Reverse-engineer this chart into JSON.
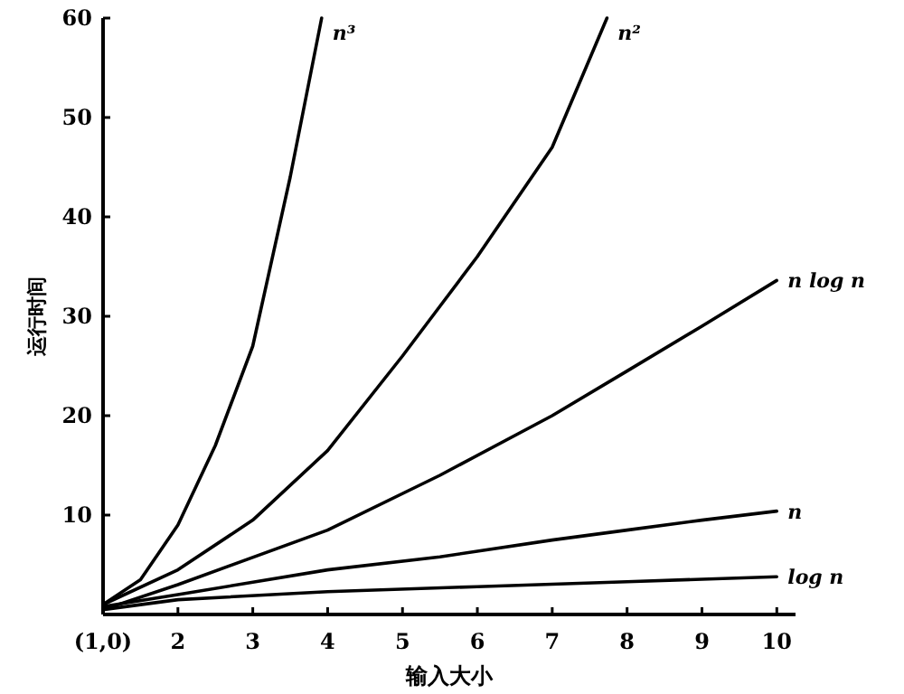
{
  "chart_data": {
    "type": "line",
    "xlabel": "输入大小",
    "ylabel": "运行时间",
    "xlim": [
      1,
      10.25
    ],
    "ylim": [
      0,
      60
    ],
    "xticks": [
      {
        "value": 1,
        "label": "(1,0)"
      },
      2,
      3,
      4,
      5,
      6,
      7,
      8,
      9,
      10
    ],
    "yticks": [
      {
        "value": 0,
        "label": null
      },
      10,
      20,
      30,
      40,
      50,
      60
    ],
    "grid": false,
    "marker": "none",
    "line_style": "solid",
    "series": [
      {
        "name": "n³",
        "color": "#000000",
        "x": [
          1,
          1.5,
          2,
          2.5,
          3,
          3.5,
          3.92
        ],
        "values": [
          1,
          3.5,
          9,
          17,
          27,
          44,
          60
        ]
      },
      {
        "name": "n²",
        "color": "#000000",
        "x": [
          1,
          2,
          3,
          4,
          5,
          5.5,
          6,
          7,
          7.73
        ],
        "values": [
          1,
          4.5,
          9.5,
          16.5,
          26,
          31,
          36,
          47,
          60
        ]
      },
      {
        "name": "n log n",
        "color": "#000000",
        "x": [
          1,
          2,
          4,
          5.5,
          7,
          8,
          9,
          10
        ],
        "values": [
          0.5,
          3,
          8.5,
          14,
          20,
          24.5,
          29,
          33.6
        ]
      },
      {
        "name": "n",
        "color": "#000000",
        "x": [
          1,
          2,
          4,
          5.5,
          7,
          8,
          9,
          10
        ],
        "values": [
          0.8,
          2,
          4.5,
          5.8,
          7.5,
          8.5,
          9.5,
          10.4
        ]
      },
      {
        "name": "log n",
        "color": "#000000",
        "x": [
          1,
          2,
          4,
          6,
          8,
          10
        ],
        "values": [
          0.5,
          1.5,
          2.3,
          2.8,
          3.3,
          3.8
        ]
      }
    ]
  }
}
